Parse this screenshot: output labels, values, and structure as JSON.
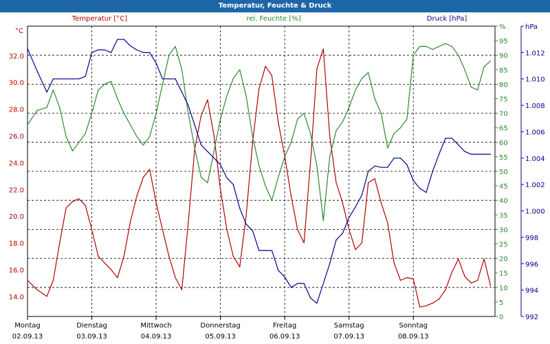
{
  "window": {
    "title": "Temperatur, Feuchte & Druck"
  },
  "chart_data": {
    "type": "line",
    "title": "Temperatur, Feuchte & Druck",
    "axes": {
      "temperature": {
        "unit": "°C",
        "series_label": "Temperatur [°C]",
        "ylim": [
          12.5,
          34.2
        ],
        "ticks": [
          "14.0",
          "16.0",
          "18.0",
          "20.0",
          "22.0",
          "24.0",
          "26.0",
          "28.0",
          "30.0",
          "32.0"
        ],
        "tick_values": [
          14,
          16,
          18,
          20,
          22,
          24,
          26,
          28,
          30,
          32
        ],
        "color": "#b00000"
      },
      "humidity": {
        "unit": "%",
        "series_label": "rel. Feuchte [%]",
        "ylim": [
          0,
          100
        ],
        "ticks": [
          "0",
          "5",
          "10",
          "15",
          "20",
          "25",
          "30",
          "35",
          "40",
          "45",
          "50",
          "55",
          "60",
          "65",
          "70",
          "75",
          "80",
          "85",
          "90",
          "95",
          "%"
        ],
        "tick_values": [
          0,
          5,
          10,
          15,
          20,
          25,
          30,
          35,
          40,
          45,
          50,
          55,
          60,
          65,
          70,
          75,
          80,
          85,
          90,
          95,
          100
        ],
        "color": "#2a8a2a"
      },
      "pressure": {
        "unit": "hPa",
        "series_label": "Druck [hPa]",
        "ylim": [
          992,
          1014
        ],
        "ticks": [
          "992",
          "994",
          "996",
          "998",
          "1.000",
          "1.002",
          "1.004",
          "1.006",
          "1.008",
          "1.010",
          "1.012",
          "hPa"
        ],
        "tick_values": [
          992,
          994,
          996,
          998,
          1000,
          1002,
          1004,
          1006,
          1008,
          1010,
          1012,
          1014
        ],
        "color": "#00008b"
      }
    },
    "x_ticks": [
      {
        "day": "Montag",
        "date": "02.09.13"
      },
      {
        "day": "Dienstag",
        "date": "03.09.13"
      },
      {
        "day": "Mittwoch",
        "date": "04.09.13"
      },
      {
        "day": "Donnerstag",
        "date": "05.09.13"
      },
      {
        "day": "Freitag",
        "date": "06.09.13"
      },
      {
        "day": "Samstag",
        "date": "07.09.13"
      },
      {
        "day": "Sonntag",
        "date": "08.09.13"
      }
    ],
    "x_range_days": [
      0,
      7.27
    ],
    "grid": true,
    "series": [
      {
        "name": "Temperatur [°C]",
        "axis": "temperature",
        "color": "#b00000",
        "x": [
          0,
          0.15,
          0.3,
          0.4,
          0.5,
          0.6,
          0.7,
          0.8,
          0.9,
          1.0,
          1.1,
          1.2,
          1.3,
          1.4,
          1.5,
          1.6,
          1.7,
          1.8,
          1.9,
          2.0,
          2.1,
          2.2,
          2.3,
          2.4,
          2.5,
          2.6,
          2.7,
          2.8,
          2.9,
          3.0,
          3.1,
          3.2,
          3.3,
          3.4,
          3.5,
          3.6,
          3.7,
          3.8,
          3.9,
          4.0,
          4.1,
          4.2,
          4.3,
          4.4,
          4.5,
          4.6,
          4.7,
          4.8,
          4.9,
          5.0,
          5.1,
          5.2,
          5.3,
          5.4,
          5.5,
          5.6,
          5.7,
          5.8,
          5.9,
          6.0,
          6.1,
          6.2,
          6.3,
          6.4,
          6.5,
          6.6,
          6.7,
          6.8,
          6.9,
          7.0,
          7.1,
          7.2
        ],
        "values": [
          15.2,
          14.5,
          14.0,
          15.2,
          18.0,
          20.6,
          21.1,
          21.3,
          20.8,
          19.0,
          17.0,
          16.5,
          16.0,
          15.4,
          17.0,
          19.6,
          21.5,
          22.9,
          23.5,
          21.0,
          19.0,
          17.0,
          15.4,
          14.5,
          19.5,
          25.0,
          27.5,
          28.7,
          26.0,
          22.0,
          19.0,
          17.0,
          16.2,
          20.0,
          25.5,
          29.5,
          31.2,
          30.5,
          27.0,
          24.5,
          21.5,
          19.0,
          18.0,
          24.0,
          31.0,
          32.5,
          26.0,
          22.5,
          21.0,
          19.0,
          17.5,
          18.0,
          22.5,
          22.8,
          21.0,
          19.5,
          16.5,
          15.2,
          15.4,
          15.3,
          13.2,
          13.3,
          13.5,
          13.8,
          14.5,
          15.8,
          16.8,
          15.5,
          15.0,
          15.2,
          16.8,
          14.8
        ]
      },
      {
        "name": "rel. Feuchte [%]",
        "axis": "humidity",
        "color": "#2a8a2a",
        "x": [
          0,
          0.15,
          0.3,
          0.4,
          0.5,
          0.6,
          0.7,
          0.8,
          0.9,
          1.0,
          1.1,
          1.2,
          1.3,
          1.4,
          1.5,
          1.6,
          1.7,
          1.8,
          1.9,
          2.0,
          2.1,
          2.2,
          2.3,
          2.4,
          2.5,
          2.6,
          2.7,
          2.8,
          2.9,
          3.0,
          3.1,
          3.2,
          3.3,
          3.4,
          3.5,
          3.6,
          3.7,
          3.8,
          3.9,
          4.0,
          4.1,
          4.2,
          4.3,
          4.4,
          4.5,
          4.6,
          4.7,
          4.8,
          4.9,
          5.0,
          5.1,
          5.2,
          5.3,
          5.4,
          5.5,
          5.6,
          5.7,
          5.8,
          5.9,
          6.0,
          6.1,
          6.2,
          6.3,
          6.4,
          6.5,
          6.6,
          6.7,
          6.8,
          6.9,
          7.0,
          7.1,
          7.2
        ],
        "values": [
          66,
          71,
          72,
          78,
          72,
          62,
          57,
          60,
          63,
          70,
          78,
          80,
          81,
          75,
          70,
          66,
          62,
          59,
          62,
          70,
          80,
          90,
          93,
          85,
          70,
          58,
          48,
          46,
          57,
          68,
          76,
          82,
          85,
          76,
          62,
          52,
          45,
          40,
          48,
          55,
          60,
          68,
          70,
          63,
          52,
          33,
          55,
          64,
          67,
          72,
          78,
          82,
          84,
          75,
          70,
          58,
          63,
          65,
          68,
          90,
          93,
          93,
          92,
          93,
          94,
          93,
          90,
          85,
          79,
          78,
          86,
          88
        ]
      },
      {
        "name": "Druck [hPa]",
        "axis": "pressure",
        "color": "#00008b",
        "x": [
          0,
          0.15,
          0.3,
          0.4,
          0.5,
          0.6,
          0.7,
          0.8,
          0.9,
          1.0,
          1.1,
          1.2,
          1.3,
          1.4,
          1.5,
          1.6,
          1.7,
          1.8,
          1.9,
          2.0,
          2.1,
          2.2,
          2.3,
          2.4,
          2.5,
          2.6,
          2.7,
          2.8,
          2.9,
          3.0,
          3.1,
          3.2,
          3.3,
          3.4,
          3.5,
          3.6,
          3.7,
          3.8,
          3.9,
          4.0,
          4.1,
          4.2,
          4.3,
          4.4,
          4.5,
          4.6,
          4.7,
          4.8,
          4.9,
          5.0,
          5.1,
          5.2,
          5.3,
          5.4,
          5.5,
          5.6,
          5.7,
          5.8,
          5.9,
          6.0,
          6.1,
          6.2,
          6.3,
          6.4,
          6.5,
          6.6,
          6.7,
          6.8,
          6.9,
          7.0,
          7.1,
          7.2
        ],
        "values": [
          1012.3,
          1010.6,
          1009.0,
          1010.0,
          1010.0,
          1010.0,
          1010.0,
          1010.0,
          1010.2,
          1012.0,
          1012.2,
          1012.2,
          1012.0,
          1013.0,
          1013.0,
          1012.5,
          1012.2,
          1012.0,
          1012.0,
          1011.2,
          1010.0,
          1010.0,
          1010.0,
          1009.0,
          1008.0,
          1006.5,
          1005.0,
          1004.5,
          1004.0,
          1003.5,
          1002.5,
          1002.0,
          1000.2,
          999.0,
          998.5,
          997.0,
          997.0,
          997.0,
          995.5,
          995.0,
          994.2,
          994.5,
          994.5,
          993.4,
          993.0,
          994.5,
          996.0,
          997.8,
          998.3,
          999.5,
          1000.3,
          1001.2,
          1003.0,
          1003.4,
          1003.3,
          1003.3,
          1004.0,
          1004.0,
          1003.5,
          1002.3,
          1001.7,
          1001.4,
          1003.0,
          1004.3,
          1005.5,
          1005.5,
          1005.0,
          1004.5,
          1004.3,
          1004.3,
          1004.3,
          1004.3
        ]
      }
    ]
  }
}
